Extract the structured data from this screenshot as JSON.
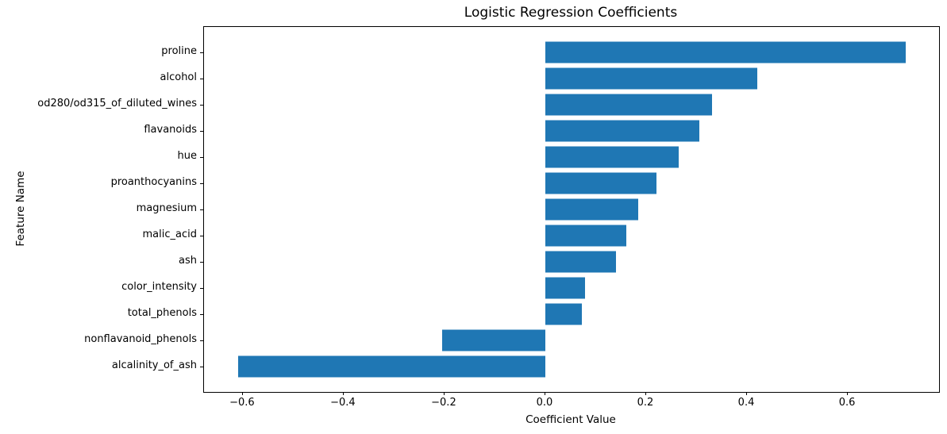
{
  "chart_data": {
    "type": "bar",
    "orientation": "horizontal",
    "title": "Logistic Regression Coefficients",
    "xlabel": "Coefficient Value",
    "ylabel": "Feature Name",
    "xlim": [
      -0.677,
      0.781
    ],
    "grid": false,
    "legend": "none",
    "bar_color": "#1f77b4",
    "categories": [
      "proline",
      "alcohol",
      "od280/od315_of_diluted_wines",
      "flavanoids",
      "hue",
      "proanthocyanins",
      "magnesium",
      "malic_acid",
      "ash",
      "color_intensity",
      "total_phenols",
      "nonflavanoid_phenols",
      "alcalinity_of_ash"
    ],
    "values": [
      0.715,
      0.42,
      0.33,
      0.305,
      0.265,
      0.22,
      0.185,
      0.16,
      0.14,
      0.078,
      0.072,
      -0.205,
      -0.61
    ],
    "x_ticks": [
      {
        "value": -0.6,
        "label": "−0.6"
      },
      {
        "value": -0.4,
        "label": "−0.4"
      },
      {
        "value": -0.2,
        "label": "−0.2"
      },
      {
        "value": 0.0,
        "label": "0.0"
      },
      {
        "value": 0.2,
        "label": "0.2"
      },
      {
        "value": 0.4,
        "label": "0.4"
      },
      {
        "value": 0.6,
        "label": "0.6"
      }
    ]
  }
}
